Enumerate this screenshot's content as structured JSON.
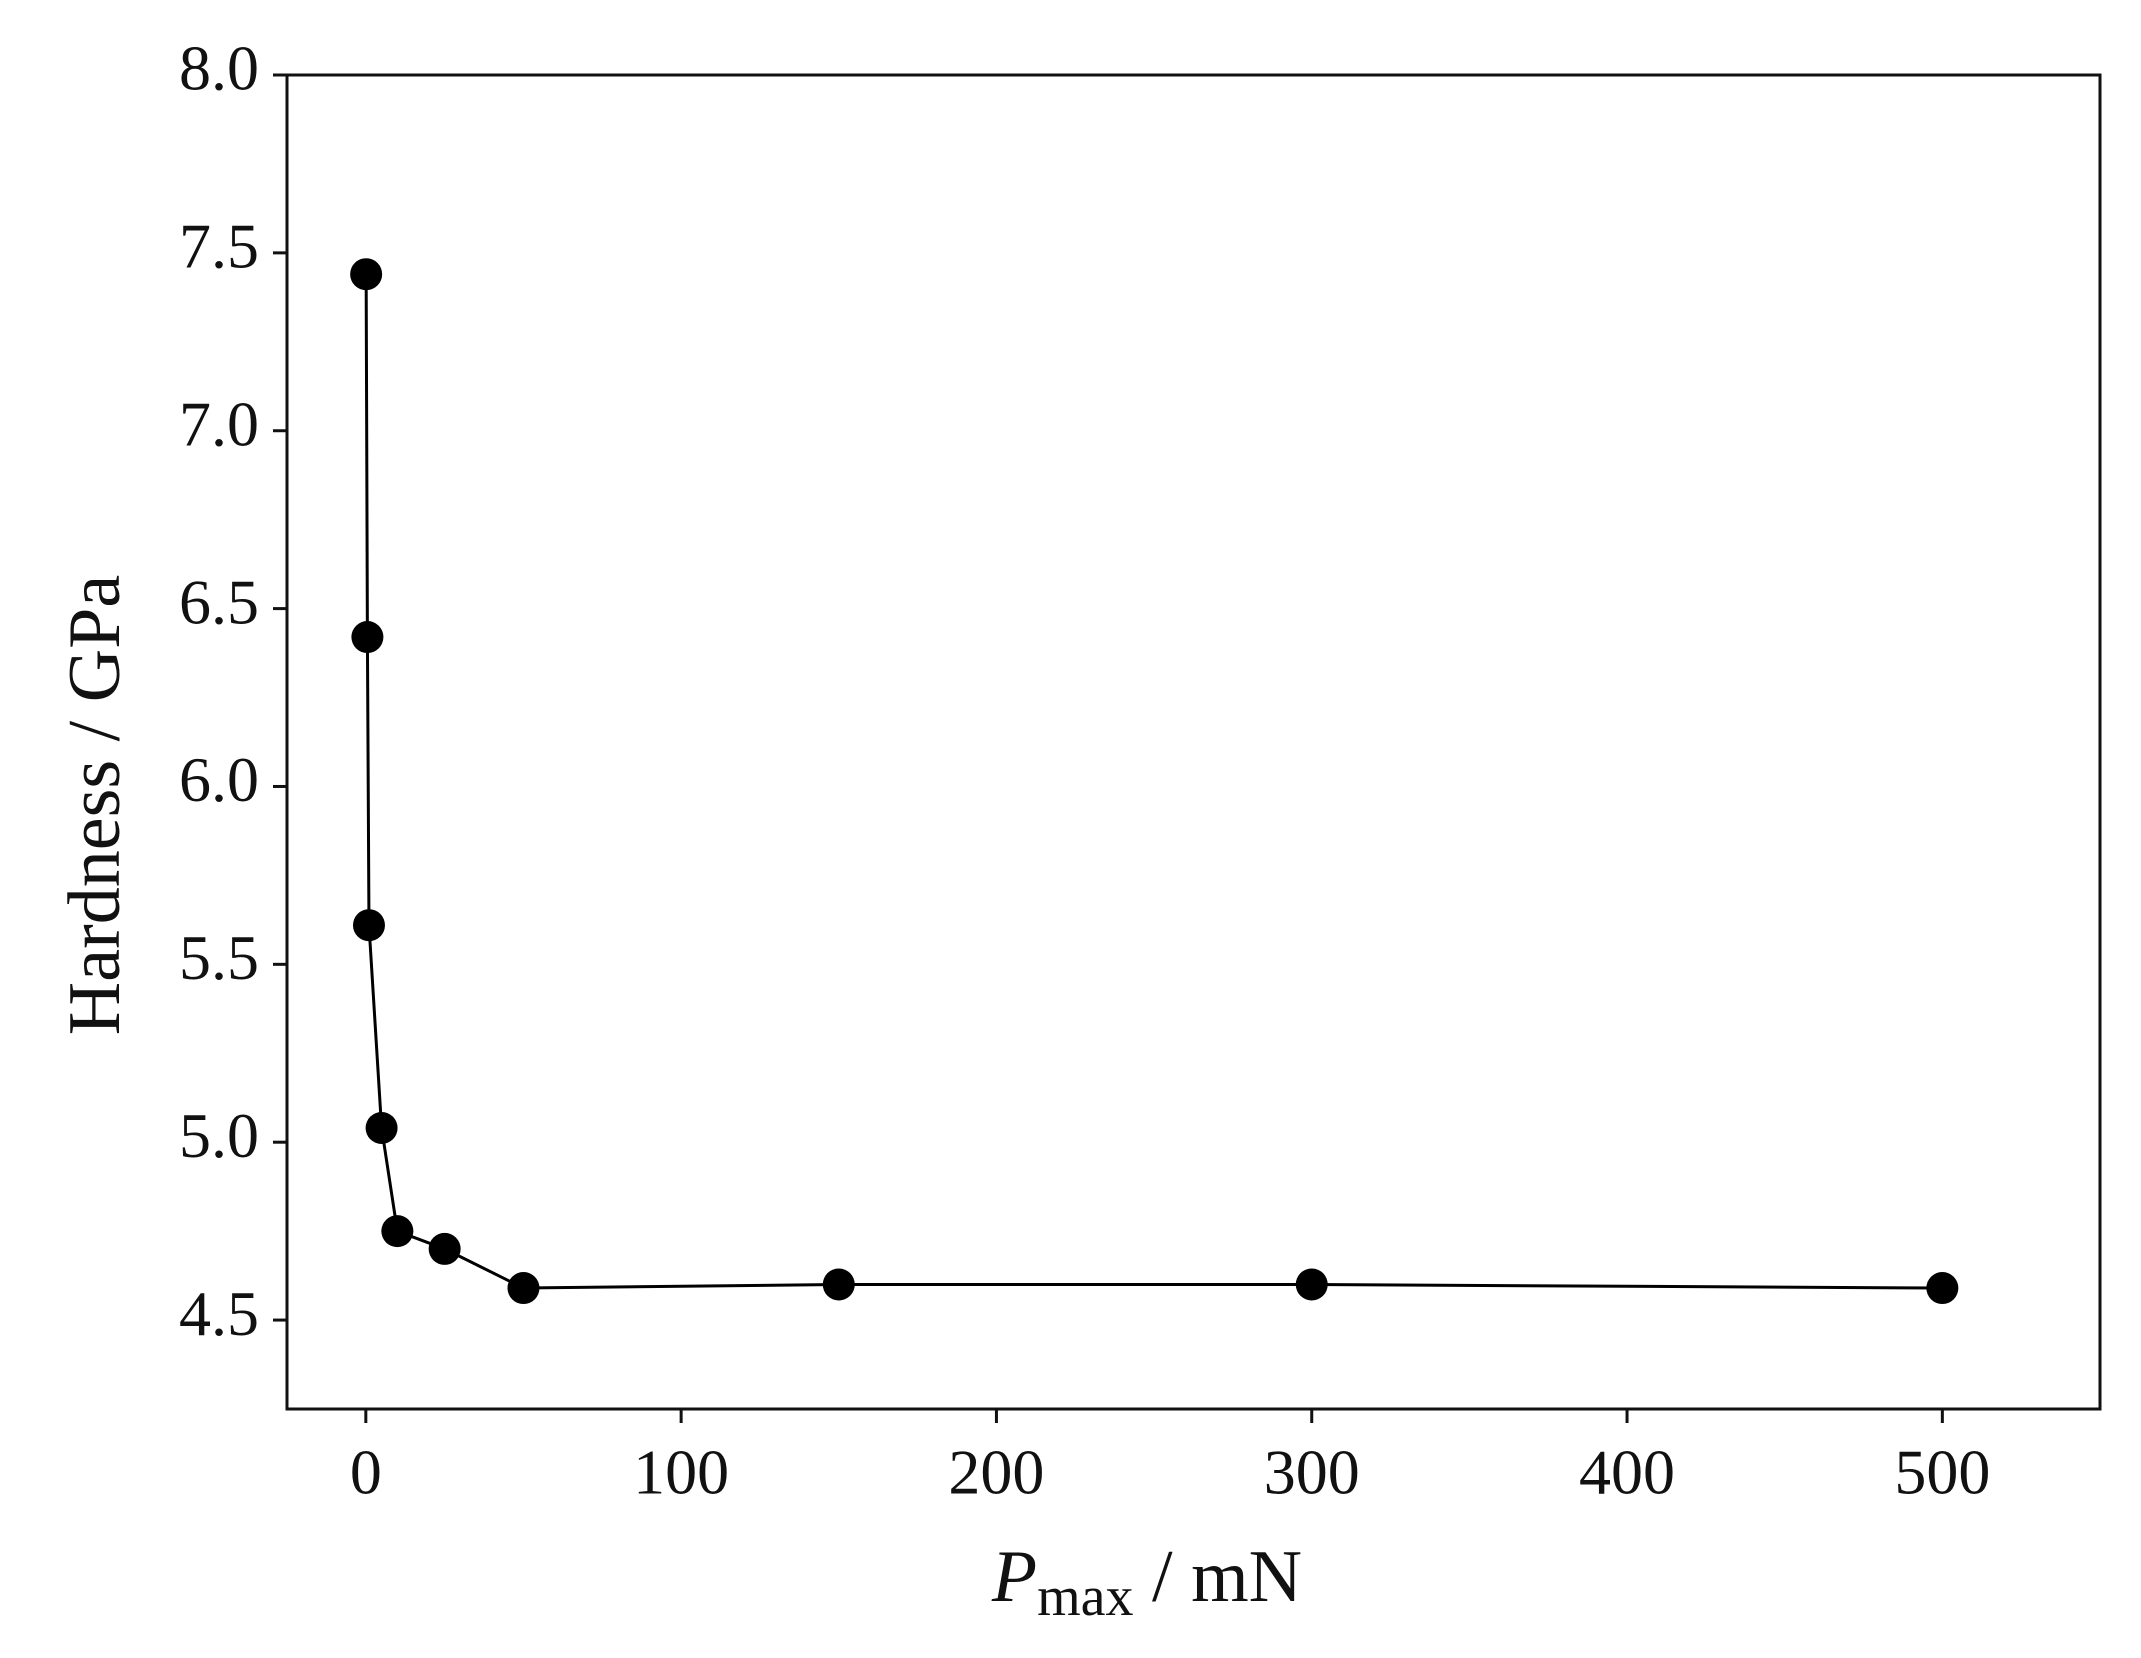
{
  "chart_data": {
    "type": "line",
    "x_label": {
      "symbol": "P",
      "subscript": "max",
      "unit": " / mN"
    },
    "y_label": "Hardness / GPa",
    "x": [
      0.1,
      0.5,
      1,
      5,
      10,
      25,
      50,
      150,
      300,
      500
    ],
    "series": [
      {
        "color": "#000000",
        "values": [
          7.44,
          6.42,
          5.61,
          5.04,
          4.75,
          4.7,
          4.59,
          4.6,
          4.6,
          4.59
        ]
      }
    ],
    "xlim": [
      -25,
      550
    ],
    "xticks": [
      0,
      100,
      200,
      300,
      400,
      500
    ],
    "ylim": [
      4.25,
      8.0
    ],
    "yticks": [
      4.5,
      {
        "value": 5,
        "label": "5.0"
      },
      5.5,
      {
        "value": 6,
        "label": "6.0"
      },
      6.5,
      {
        "value": 7,
        "label": "7.0"
      },
      7.5,
      {
        "value": 8,
        "label": "8.0"
      }
    ],
    "grid": false
  }
}
